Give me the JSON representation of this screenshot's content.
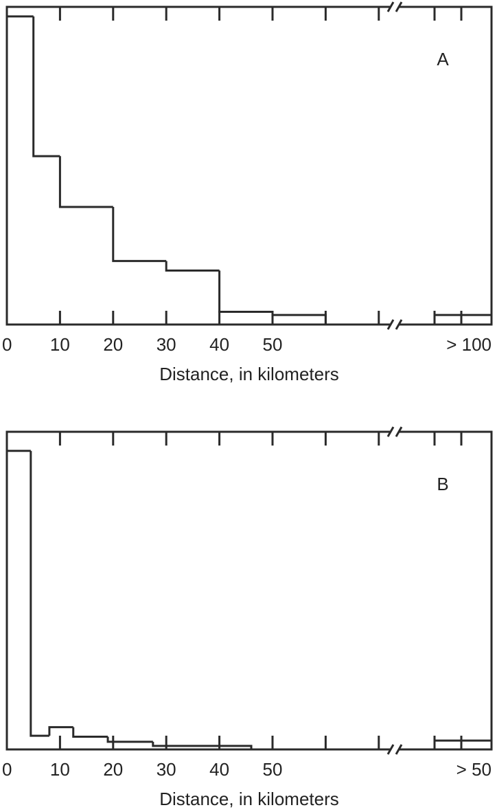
{
  "chart_data": [
    {
      "type": "histogram",
      "label": "A",
      "xlabel": "Distance, in kilometers",
      "bins": [
        0,
        5,
        10,
        20,
        30,
        40,
        50,
        60
      ],
      "values": [
        97,
        53,
        37,
        20,
        17,
        4,
        3
      ],
      "xlim": [
        0,
        73
      ],
      "ylim": [
        0,
        100
      ],
      "xticks": [
        0,
        10,
        20,
        30,
        40,
        50
      ],
      "minor_xticks": [
        60,
        70
      ],
      "overflow": {
        "label": "> 100",
        "value": 3
      },
      "color": "#2a2a2a"
    },
    {
      "type": "histogram",
      "label": "B",
      "xlabel": "Distance, in kilometers",
      "bins": [
        0,
        4.5,
        8,
        12.5,
        19,
        27.5,
        46
      ],
      "values": [
        94,
        4.3,
        7,
        4,
        2.4,
        1.1
      ],
      "xlim": [
        0,
        73
      ],
      "ylim": [
        0,
        100
      ],
      "xticks": [
        0,
        10,
        20,
        30,
        40,
        50
      ],
      "minor_xticks": [
        60,
        70
      ],
      "overflow": {
        "label": "> 50",
        "value": 2.8
      },
      "color": "#2a2a2a"
    }
  ]
}
